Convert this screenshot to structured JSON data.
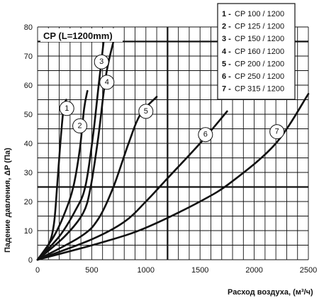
{
  "chart_data": {
    "type": "line",
    "title": "CP (L=1200mm)",
    "xlabel": "Расход воздуха, (м³/ч)",
    "ylabel": "Падение давления, ΔP (Па)",
    "xlim": [
      0,
      2500
    ],
    "ylim": [
      0,
      80
    ],
    "x_ticks": [
      "0",
      "500",
      "1000",
      "1500",
      "2000",
      "2500"
    ],
    "y_ticks": [
      "0",
      "10",
      "20",
      "30",
      "40",
      "50",
      "60",
      "70",
      "80"
    ],
    "grid": true,
    "legend_position": "top-right",
    "series": [
      {
        "name": "CP 100 / 1200",
        "label": "1",
        "points": [
          [
            0,
            0
          ],
          [
            100,
            5
          ],
          [
            150,
            12
          ],
          [
            180,
            25
          ],
          [
            210,
            40
          ],
          [
            240,
            52
          ],
          [
            265,
            55
          ]
        ]
      },
      {
        "name": "CP 125 / 1200",
        "label": "2",
        "points": [
          [
            0,
            0
          ],
          [
            150,
            8
          ],
          [
            250,
            16
          ],
          [
            330,
            25
          ],
          [
            390,
            38
          ],
          [
            430,
            52
          ],
          [
            460,
            58
          ]
        ]
      },
      {
        "name": "CP 150 / 1200",
        "label": "3",
        "points": [
          [
            0,
            0
          ],
          [
            200,
            8
          ],
          [
            350,
            17
          ],
          [
            440,
            25
          ],
          [
            510,
            42
          ],
          [
            570,
            62
          ],
          [
            610,
            75
          ]
        ]
      },
      {
        "name": "CP 160 / 1200",
        "label": "4",
        "points": [
          [
            0,
            0
          ],
          [
            250,
            8
          ],
          [
            420,
            16
          ],
          [
            490,
            25
          ],
          [
            560,
            42
          ],
          [
            630,
            63
          ],
          [
            700,
            75
          ]
        ]
      },
      {
        "name": "CP 200 / 1200",
        "label": "5",
        "points": [
          [
            0,
            0
          ],
          [
            400,
            8
          ],
          [
            560,
            14
          ],
          [
            700,
            25
          ],
          [
            840,
            40
          ],
          [
            950,
            50
          ],
          [
            1100,
            56
          ]
        ]
      },
      {
        "name": "CP 250 / 1200",
        "label": "6",
        "points": [
          [
            0,
            0
          ],
          [
            500,
            7
          ],
          [
            800,
            13
          ],
          [
            1000,
            20
          ],
          [
            1200,
            28
          ],
          [
            1500,
            40
          ],
          [
            1750,
            51
          ]
        ]
      },
      {
        "name": "CP 315 / 1200",
        "label": "7",
        "points": [
          [
            0,
            0
          ],
          [
            600,
            6
          ],
          [
            1000,
            11
          ],
          [
            1500,
            20
          ],
          [
            1800,
            27
          ],
          [
            2200,
            40
          ],
          [
            2500,
            57
          ]
        ]
      }
    ],
    "labels": [
      {
        "text": "1",
        "x": 270,
        "y": 52
      },
      {
        "text": "2",
        "x": 390,
        "y": 46
      },
      {
        "text": "3",
        "x": 590,
        "y": 68
      },
      {
        "text": "4",
        "x": 640,
        "y": 61
      },
      {
        "text": "5",
        "x": 1000,
        "y": 51
      },
      {
        "text": "6",
        "x": 1550,
        "y": 43
      },
      {
        "text": "7",
        "x": 2210,
        "y": 44
      }
    ]
  }
}
